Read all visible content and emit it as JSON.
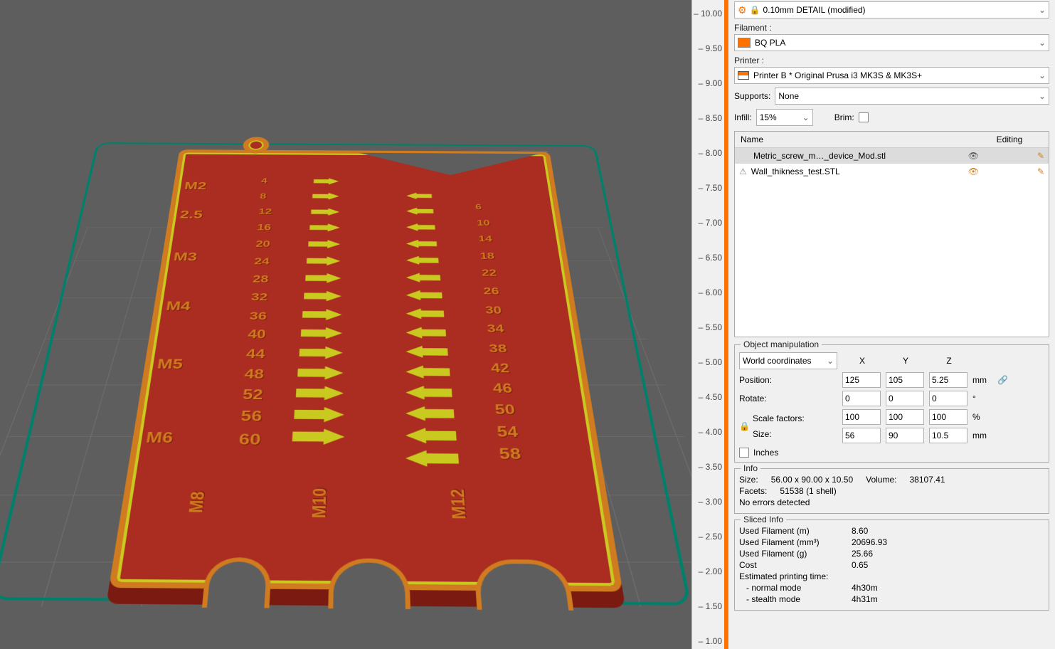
{
  "viewport": {
    "ruler_ticks": [
      "10.00",
      "9.50",
      "9.00",
      "8.50",
      "8.00",
      "7.50",
      "7.00",
      "6.50",
      "6.00",
      "5.50",
      "5.00",
      "4.50",
      "4.00",
      "3.50",
      "3.00",
      "2.50",
      "2.00",
      "1.50",
      "1.00"
    ],
    "m_labels": [
      "M2",
      "2.5",
      "M3",
      "M4",
      "M5",
      "M6"
    ],
    "bottom_labels": [
      "M8",
      "M10",
      "M12"
    ],
    "left_numbers": [
      "4",
      "8",
      "12",
      "16",
      "20",
      "24",
      "28",
      "32",
      "36",
      "40",
      "44",
      "48",
      "52",
      "56",
      "60"
    ],
    "right_numbers": [
      "6",
      "10",
      "14",
      "18",
      "22",
      "26",
      "30",
      "34",
      "38",
      "42",
      "46",
      "50",
      "54",
      "58"
    ],
    "colors": {
      "infill": "#ab2c20",
      "perimeter": "#d07b1f",
      "inner": "#c9c91f",
      "skirt": "#00806a",
      "grid": "#5e5e5e"
    }
  },
  "panel": {
    "preset": "0.10mm DETAIL (modified)",
    "filament_label": "Filament :",
    "filament": "BQ PLA",
    "filament_color": "#ff7200",
    "printer_label": "Printer :",
    "printer": "Printer B * Original Prusa i3 MK3S & MK3S+",
    "supports_label": "Supports:",
    "supports": "None",
    "infill_label": "Infill:",
    "infill": "15%",
    "brim_label": "Brim:",
    "list_hdr_name": "Name",
    "list_hdr_edit": "Editing",
    "objects": [
      {
        "name": "Metric_screw_m…_device_Mod.stl",
        "visible": true,
        "selected": true
      },
      {
        "name": "Wall_thikness_test.STL",
        "visible": false,
        "selected": false,
        "warn": true
      }
    ],
    "om": {
      "title": "Object manipulation",
      "coords": "World coordinates",
      "X": "X",
      "Y": "Y",
      "Z": "Z",
      "position_label": "Position:",
      "pos": [
        "125",
        "105",
        "5.25"
      ],
      "pos_unit": "mm",
      "rotate_label": "Rotate:",
      "rot": [
        "0",
        "0",
        "0"
      ],
      "rot_unit": "°",
      "scale_label": "Scale factors:",
      "scale": [
        "100",
        "100",
        "100"
      ],
      "scale_unit": "%",
      "size_label": "Size:",
      "size": [
        "56",
        "90",
        "10.5"
      ],
      "size_unit": "mm",
      "inches_label": "Inches"
    },
    "info": {
      "title": "Info",
      "size_label": "Size:",
      "size": "56.00 x 90.00 x 10.50",
      "vol_label": "Volume:",
      "vol": "38107.41",
      "facets_label": "Facets:",
      "facets": "51538 (1 shell)",
      "errors": "No errors detected"
    },
    "sliced": {
      "title": "Sliced Info",
      "rows": [
        [
          "Used Filament (m)",
          "8.60"
        ],
        [
          "Used Filament (mm³)",
          "20696.93"
        ],
        [
          "Used Filament (g)",
          "25.66"
        ],
        [
          "Cost",
          "0.65"
        ],
        [
          "Estimated printing time:",
          ""
        ],
        [
          "   - normal mode",
          "4h30m"
        ],
        [
          "   - stealth mode",
          "4h31m"
        ]
      ]
    }
  }
}
